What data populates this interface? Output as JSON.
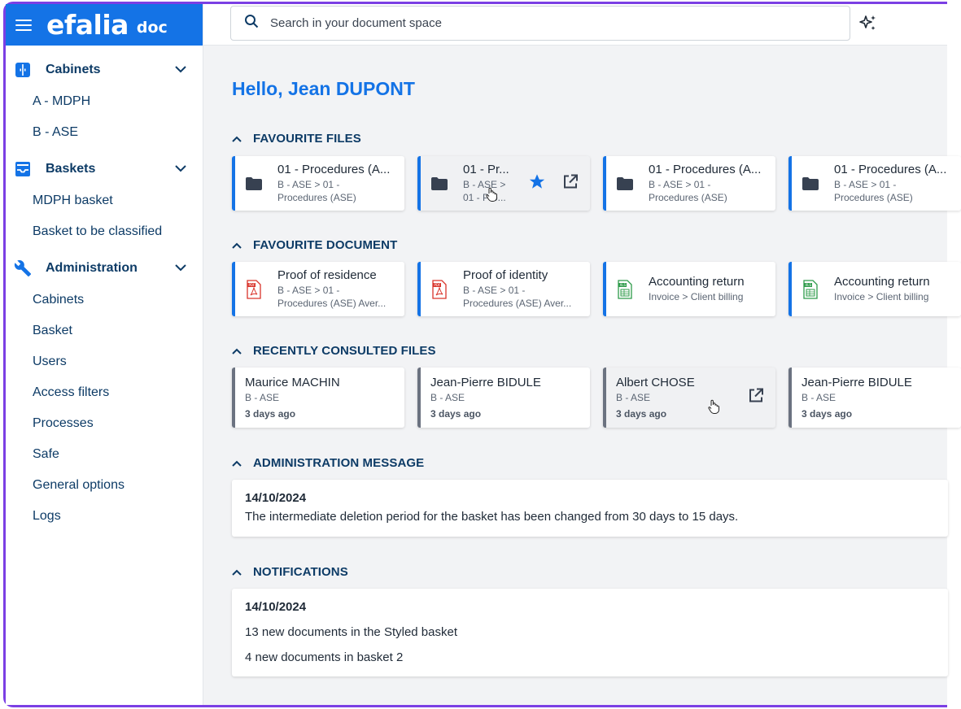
{
  "brand": {
    "logo": "efalia",
    "product": "doc"
  },
  "search": {
    "placeholder": "Search in your document space"
  },
  "sidebar": {
    "groups": [
      {
        "label": "Cabinets",
        "icon": "cabinet-icon",
        "items": [
          "A - MDPH",
          "B - ASE"
        ]
      },
      {
        "label": "Baskets",
        "icon": "inbox-icon",
        "items": [
          "MDPH basket",
          "Basket to be classified"
        ]
      },
      {
        "label": "Administration",
        "icon": "wrench-icon",
        "items": [
          "Cabinets",
          "Basket",
          "Users",
          "Access filters",
          "Processes",
          "Safe",
          "General options",
          "Logs"
        ]
      }
    ]
  },
  "greeting": "Hello, Jean DUPONT",
  "sections": {
    "favourite_files": "FAVOURITE FILES",
    "favourite_document": "FAVOURITE DOCUMENT",
    "recent_files": "RECENTLY CONSULTED FILES",
    "admin_message": "ADMINISTRATION MESSAGE",
    "notifications": "NOTIFICATIONS"
  },
  "favourite_files": [
    {
      "title": "01 - Procedures (A...",
      "sub1": "B - ASE > 01 -",
      "sub2": "Procedures (ASE)"
    },
    {
      "title": "01 - Pr...",
      "sub1": "B - ASE >",
      "sub2": "01 - Pro..."
    },
    {
      "title": "01 - Procedures (A...",
      "sub1": "B - ASE > 01 -",
      "sub2": "Procedures (ASE)"
    },
    {
      "title": "01 - Procedures (A...",
      "sub1": "B - ASE > 01 -",
      "sub2": "Procedures (ASE)"
    }
  ],
  "favourite_documents": [
    {
      "title": "Proof of residence",
      "sub1": "B - ASE > 01 -",
      "sub2": "Procedures (ASE) Aver...",
      "type": "pdf"
    },
    {
      "title": "Proof of identity",
      "sub1": "B - ASE > 01 -",
      "sub2": "Procedures (ASE) Aver...",
      "type": "pdf"
    },
    {
      "title": "Accounting return",
      "sub1": "Invoice > Client billing",
      "sub2": "",
      "type": "xls"
    },
    {
      "title": "Accounting return",
      "sub1": "Invoice > Client billing",
      "sub2": "",
      "type": "xls"
    }
  ],
  "recent_files": [
    {
      "title": "Maurice MACHIN",
      "sub": "B - ASE",
      "time": "3 days ago"
    },
    {
      "title": "Jean-Pierre BIDULE",
      "sub": "B - ASE",
      "time": "3 days ago"
    },
    {
      "title": "Albert CHOSE",
      "sub": "B - ASE",
      "time": "3 days ago"
    },
    {
      "title": "Jean-Pierre BIDULE",
      "sub": "B - ASE",
      "time": "3 days ago"
    }
  ],
  "admin_message": {
    "date": "14/10/2024",
    "text": "The intermediate deletion period for the basket has been changed from 30 days to 15 days."
  },
  "notifications": {
    "date": "14/10/2024",
    "items": [
      "13 new documents in the Styled basket",
      "4 new documents in basket 2"
    ]
  },
  "colors": {
    "accent": "#1473e6",
    "navy": "#0d3b66",
    "frame": "#7b3fe4"
  }
}
